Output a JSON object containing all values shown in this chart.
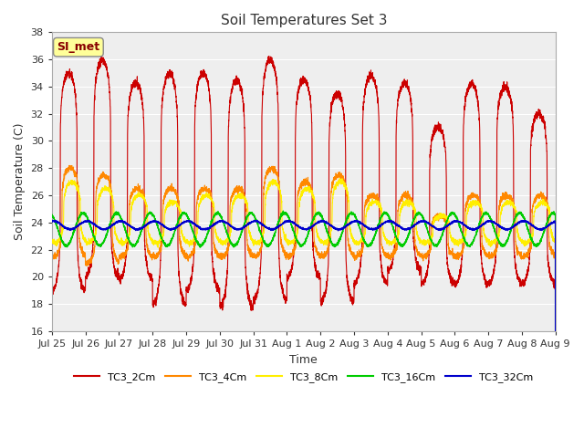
{
  "title": "Soil Temperatures Set 3",
  "xlabel": "Time",
  "ylabel": "Soil Temperature (C)",
  "ylim": [
    16,
    38
  ],
  "yticks": [
    16,
    18,
    20,
    22,
    24,
    26,
    28,
    30,
    32,
    34,
    36,
    38
  ],
  "series": [
    "TC3_2Cm",
    "TC3_4Cm",
    "TC3_8Cm",
    "TC3_16Cm",
    "TC3_32Cm"
  ],
  "colors": [
    "#cc0000",
    "#ff8800",
    "#ffee00",
    "#00cc00",
    "#0000cc"
  ],
  "xtick_labels": [
    "Jul 25",
    "Jul 26",
    "Jul 27",
    "Jul 28",
    "Jul 29",
    "Jul 30",
    "Jul 31",
    "Aug 1",
    "Aug 2",
    "Aug 3",
    "Aug 4",
    "Aug 5",
    "Aug 6",
    "Aug 7",
    "Aug 8",
    "Aug 9"
  ],
  "annotation_text": "SI_met",
  "annotation_color": "#880000",
  "annotation_bg": "#ffff99",
  "background_color": "#ffffff",
  "plot_bg": "#eeeeee",
  "grid_color": "#ffffff"
}
